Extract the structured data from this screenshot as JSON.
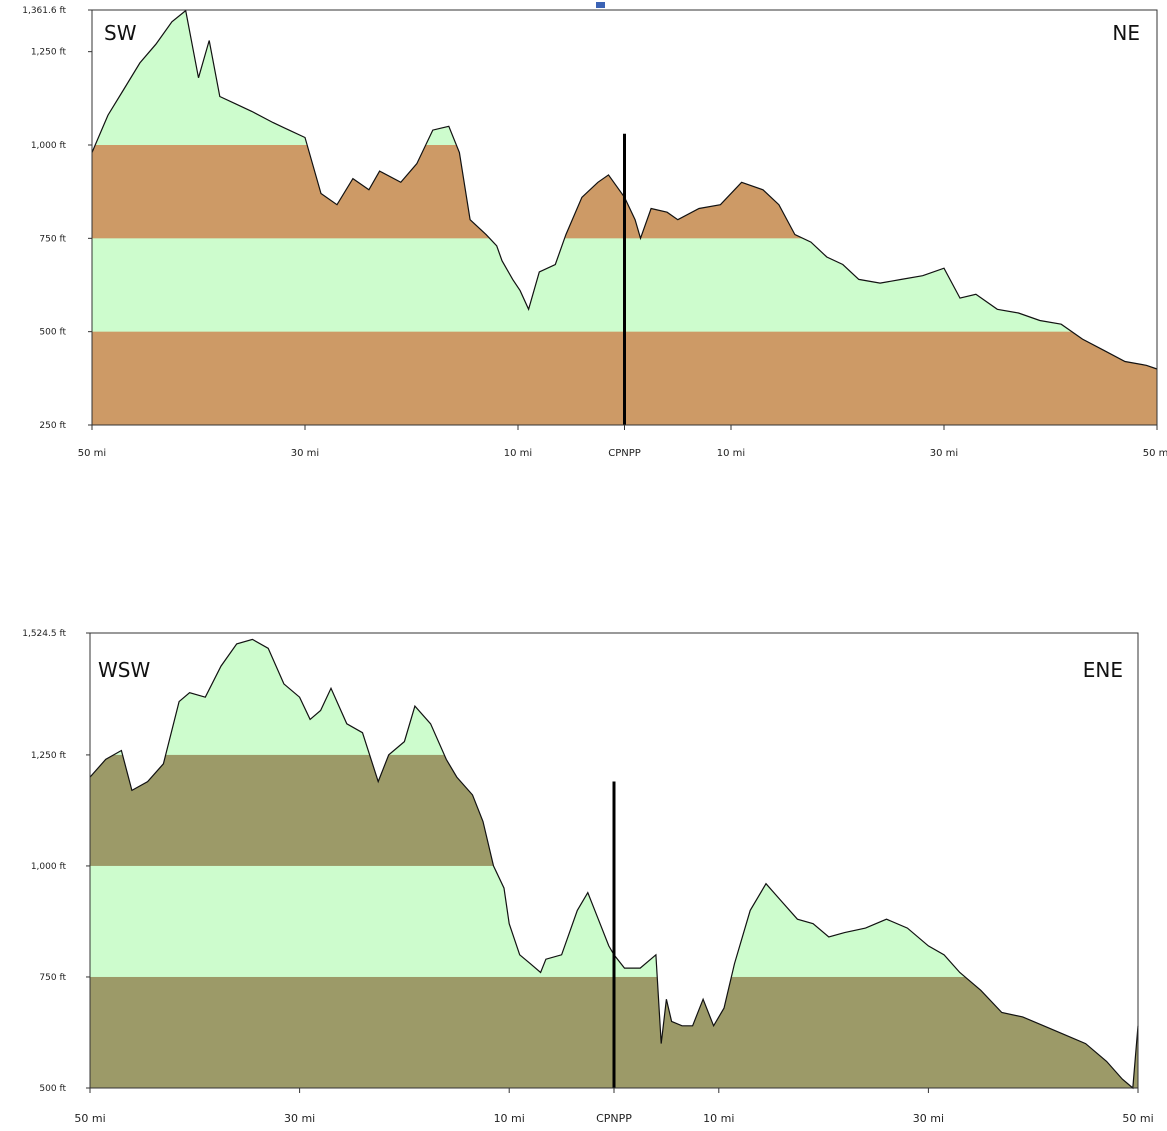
{
  "colors": {
    "terrain_light": "#cdfccd",
    "band_top": "#cd9a66",
    "band_bottom": "#9c9a68",
    "outline": "#111111",
    "marker": "#000000",
    "frame": "#333333"
  },
  "chart_data": [
    {
      "type": "area",
      "title": "",
      "xlabel": "",
      "ylabel": "",
      "left_label": "SW",
      "right_label": "NE",
      "center_label": "CPNPP",
      "ylim": [
        250,
        1361.6
      ],
      "y_ticks": [
        {
          "value": 1361.6,
          "label": "1,361.6 ft"
        },
        {
          "value": 1250,
          "label": "1,250 ft"
        },
        {
          "value": 1000,
          "label": "1,000 ft"
        },
        {
          "value": 750,
          "label": "750 ft"
        },
        {
          "value": 500,
          "label": "500 ft"
        },
        {
          "value": 250,
          "label": "250 ft"
        }
      ],
      "xlim": [
        -50,
        50
      ],
      "x_ticks": [
        {
          "value": -50,
          "label": "50 mi"
        },
        {
          "value": -30,
          "label": "30 mi"
        },
        {
          "value": -10,
          "label": "10 mi"
        },
        {
          "value": 0,
          "label": "CPNPP"
        },
        {
          "value": 10,
          "label": "10 mi"
        },
        {
          "value": 30,
          "label": "30 mi"
        },
        {
          "value": 50,
          "label": "50 mi"
        }
      ],
      "bands": [
        [
          250,
          500
        ],
        [
          750,
          1000
        ]
      ],
      "marker_top": 1030,
      "x": [
        -50,
        -48.5,
        -47,
        -45.5,
        -44,
        -42.5,
        -41.2,
        -40,
        -39,
        -38,
        -36.5,
        -35,
        -33,
        -31.5,
        -30,
        -28.5,
        -27,
        -25.5,
        -24,
        -23,
        -21,
        -19.5,
        -18,
        -16.5,
        -15.5,
        -14.5,
        -13,
        -12,
        -11.5,
        -10.5,
        -9.8,
        -9,
        -8,
        -6.5,
        -5.5,
        -4,
        -2.5,
        -1.5,
        0,
        1,
        1.5,
        2.5,
        4,
        5,
        7,
        9,
        11,
        13,
        14.5,
        16,
        17.5,
        19,
        20.5,
        22,
        24,
        26,
        28,
        30,
        31.5,
        33,
        35,
        37,
        39,
        41,
        43,
        45,
        47,
        49,
        50
      ],
      "y": [
        980,
        1080,
        1150,
        1220,
        1270,
        1330,
        1360,
        1180,
        1280,
        1130,
        1110,
        1090,
        1060,
        1040,
        1020,
        870,
        840,
        910,
        880,
        930,
        900,
        950,
        1040,
        1050,
        980,
        800,
        760,
        730,
        690,
        640,
        610,
        560,
        660,
        680,
        760,
        860,
        900,
        920,
        860,
        800,
        750,
        830,
        820,
        800,
        830,
        840,
        900,
        880,
        840,
        760,
        740,
        700,
        680,
        640,
        630,
        640,
        650,
        670,
        590,
        600,
        560,
        550,
        530,
        520,
        480,
        450,
        420,
        410,
        400
      ]
    },
    {
      "type": "area",
      "title": "",
      "xlabel": "",
      "ylabel": "",
      "left_label": "WSW",
      "right_label": "ENE",
      "center_label": "CPNPP",
      "ylim": [
        500,
        1524.5
      ],
      "y_ticks": [
        {
          "value": 1524.5,
          "label": "1,524.5 ft"
        },
        {
          "value": 1250,
          "label": "1,250 ft"
        },
        {
          "value": 1000,
          "label": "1,000 ft"
        },
        {
          "value": 750,
          "label": "750 ft"
        },
        {
          "value": 500,
          "label": "500 ft"
        }
      ],
      "xlim": [
        -50,
        50
      ],
      "x_ticks": [
        {
          "value": -50,
          "label": "50 mi"
        },
        {
          "value": -30,
          "label": "30 mi"
        },
        {
          "value": -10,
          "label": "10 mi"
        },
        {
          "value": 0,
          "label": "CPNPP"
        },
        {
          "value": 10,
          "label": "10 mi"
        },
        {
          "value": 30,
          "label": "30 mi"
        },
        {
          "value": 50,
          "label": "50 mi"
        }
      ],
      "bands": [
        [
          500,
          750
        ],
        [
          1000,
          1250
        ]
      ],
      "marker_top": 1190,
      "x": [
        -50,
        -48.5,
        -47,
        -46,
        -44.5,
        -43,
        -41.5,
        -40.5,
        -39,
        -37.5,
        -36,
        -34.5,
        -33,
        -31.5,
        -30,
        -29,
        -28,
        -27,
        -25.5,
        -24,
        -22.5,
        -21.5,
        -20,
        -19,
        -17.5,
        -16,
        -15,
        -13.5,
        -12.5,
        -11.5,
        -10.5,
        -10,
        -9,
        -8,
        -7,
        -6.5,
        -5,
        -3.5,
        -2.5,
        -1.5,
        -0.5,
        0,
        1,
        2.5,
        4,
        4.5,
        5,
        5.5,
        6.5,
        7.5,
        8.5,
        9.5,
        10.5,
        11.5,
        13,
        14.5,
        16,
        17.5,
        19,
        20.5,
        22,
        24,
        26,
        28,
        30,
        31.5,
        33,
        35,
        37,
        39,
        41,
        43,
        45,
        47,
        48.5,
        49.5,
        50
      ],
      "y": [
        1200,
        1240,
        1260,
        1170,
        1190,
        1230,
        1370,
        1390,
        1380,
        1450,
        1500,
        1510,
        1490,
        1410,
        1380,
        1330,
        1350,
        1400,
        1320,
        1300,
        1190,
        1250,
        1280,
        1360,
        1320,
        1240,
        1200,
        1160,
        1100,
        1000,
        950,
        870,
        800,
        780,
        760,
        790,
        800,
        900,
        940,
        880,
        820,
        800,
        770,
        770,
        800,
        600,
        700,
        650,
        640,
        640,
        700,
        640,
        680,
        780,
        900,
        960,
        920,
        880,
        870,
        840,
        850,
        860,
        880,
        860,
        820,
        800,
        760,
        720,
        670,
        660,
        640,
        620,
        600,
        560,
        520,
        500,
        640
      ]
    }
  ]
}
